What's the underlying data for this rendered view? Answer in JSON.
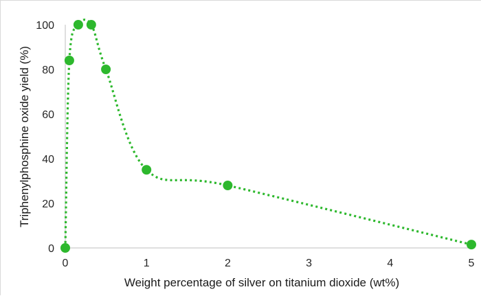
{
  "chart_data": {
    "type": "line",
    "title": "",
    "xlabel": "Weight percentage of silver on titanium dioxide (wt%)",
    "ylabel": "Triphenylphosphine oxide yield (%)",
    "xlim": [
      0,
      5
    ],
    "ylim": [
      0,
      100
    ],
    "xticks": [
      "0",
      "1",
      "2",
      "3",
      "4",
      "5"
    ],
    "yticks": [
      "0",
      "20",
      "40",
      "60",
      "80",
      "100"
    ],
    "grid": false,
    "legend": "none",
    "series": [
      {
        "name": "",
        "style": "dotted smooth line with circle markers",
        "color": "#2db82d",
        "x": [
          0,
          0.05,
          0.16,
          0.32,
          0.5,
          1,
          2,
          5
        ],
        "y": [
          0,
          84,
          100,
          100,
          80,
          35,
          28,
          1.5
        ]
      }
    ]
  }
}
